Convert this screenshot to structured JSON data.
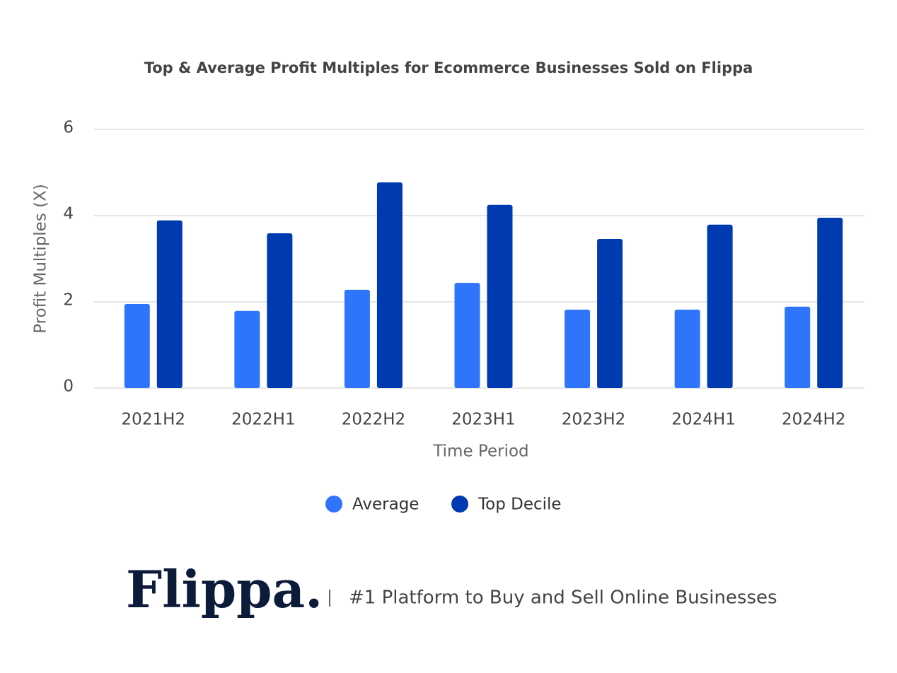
{
  "chart_data": {
    "type": "bar",
    "title": "Top & Average Profit Multiples for Ecommerce Businesses Sold on Flippa",
    "x_label": "Time Period",
    "y_label": "Profit Multiples (X)",
    "categories": [
      "2021H2",
      "2022H1",
      "2022H2",
      "2023H1",
      "2023H2",
      "2024H1",
      "2024H2"
    ],
    "series": [
      {
        "name": "Average",
        "color": "#2f75fb",
        "values": [
          1.95,
          1.79,
          2.28,
          2.44,
          1.82,
          1.82,
          1.89
        ]
      },
      {
        "name": "Top Decile",
        "color": "#003ab0",
        "values": [
          3.89,
          3.59,
          4.77,
          4.25,
          3.46,
          3.79,
          3.95
        ]
      }
    ],
    "ylim": [
      0,
      6
    ],
    "yticks": [
      0,
      2,
      4,
      6
    ],
    "grid": true,
    "legend": "bottom"
  },
  "footer": {
    "logo": "Flippa.",
    "tagline": "#1 Platform to Buy and Sell Online Businesses"
  }
}
